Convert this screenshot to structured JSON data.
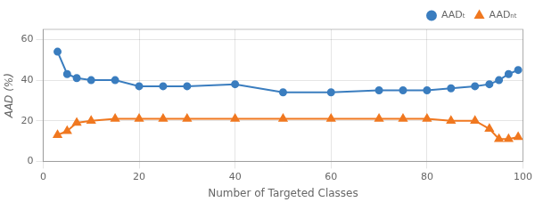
{
  "chart_data": {
    "type": "line",
    "xlabel": "Number of Targeted Classes",
    "ylabel": "AAD (%)",
    "x": [
      3,
      5,
      7,
      10,
      15,
      20,
      25,
      30,
      40,
      50,
      60,
      70,
      75,
      80,
      85,
      90,
      93,
      95,
      97,
      99
    ],
    "series": [
      {
        "name": "AADₜ",
        "color": "#3a7dbf",
        "marker": "circle",
        "values": [
          54,
          43,
          41,
          40,
          40,
          37,
          37,
          37,
          38,
          34,
          34,
          35,
          35,
          35,
          36,
          37,
          38,
          40,
          43,
          45
        ]
      },
      {
        "name": "AADₙₜ",
        "color": "#f07820",
        "marker": "triangle",
        "values": [
          13,
          15,
          19,
          20,
          21,
          21,
          21,
          21,
          21,
          21,
          21,
          21,
          21,
          21,
          20,
          20,
          16,
          11,
          11,
          12
        ]
      }
    ],
    "xlim": [
      0,
      100
    ],
    "xticks": [
      0,
      20,
      40,
      60,
      80,
      100
    ],
    "ylim": [
      0,
      65
    ],
    "yticks": [
      0,
      20,
      40,
      60
    ],
    "grid": true,
    "legend": "upper right"
  }
}
